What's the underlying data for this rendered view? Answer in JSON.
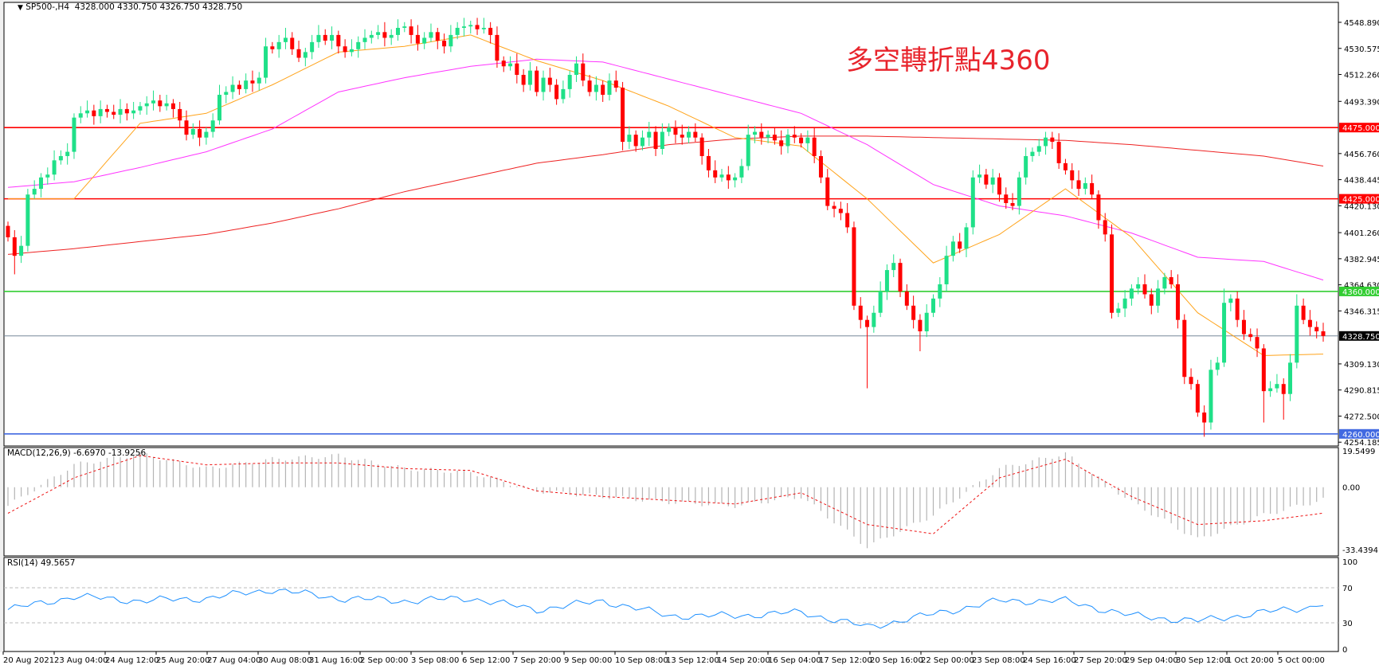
{
  "header": {
    "symbol": "SP500-,H4",
    "ohlc": "4328.000 4330.750 4326.750 4328.750"
  },
  "annotation": "多空轉折點4360",
  "colors": {
    "bull": "#1fe088",
    "bear": "#ff0000",
    "ma_fast": "#ffa31a",
    "ma_mid": "#ff33ff",
    "ma_slow": "#ee2222",
    "macd_hist": "#b4b4b4",
    "macd_signal": "#ee1111",
    "rsi": "#1e90ff"
  },
  "chart_data": [
    {
      "type": "candlestick",
      "title": "SP500-,H4",
      "price_axis_labels": [
        "4548.890",
        "4530.575",
        "4512.260",
        "4493.390",
        "4456.760",
        "4438.445",
        "4420.130",
        "4401.260",
        "4382.945",
        "4364.630",
        "4346.315",
        "4309.130",
        "4290.815",
        "4272.500",
        "4254.185"
      ],
      "ylim": [
        4254.185,
        4548.89
      ],
      "time_axis_labels": [
        "20 Aug 2021",
        "23 Aug 04:00",
        "24 Aug 12:00",
        "25 Aug 20:00",
        "27 Aug 04:00",
        "30 Aug 08:00",
        "31 Aug 16:00",
        "2 Sep 00:00",
        "3 Sep 08:00",
        "6 Sep 12:00",
        "7 Sep 20:00",
        "9 Sep 00:00",
        "10 Sep 08:00",
        "13 Sep 12:00",
        "14 Sep 20:00",
        "16 Sep 04:00",
        "17 Sep 12:00",
        "20 Sep 16:00",
        "22 Sep 00:00",
        "23 Sep 08:00",
        "24 Sep 16:00",
        "27 Sep 20:00",
        "29 Sep 04:00",
        "30 Sep 12:00",
        "1 Oct 20:00",
        "5 Oct 00:00"
      ],
      "close": [
        4398,
        4385,
        4392,
        4428,
        4432,
        4440,
        4442,
        4452,
        4455,
        4458,
        4482,
        4485,
        4487,
        4483,
        4488,
        4486,
        4484,
        4488,
        4485,
        4487,
        4490,
        4492,
        4494,
        4490,
        4492,
        4488,
        4480,
        4470,
        4474,
        4468,
        4472,
        4480,
        4498,
        4500,
        4505,
        4502,
        4508,
        4506,
        4510,
        4532,
        4530,
        4535,
        4538,
        4530,
        4524,
        4528,
        4535,
        4540,
        4536,
        4540,
        4532,
        4528,
        4530,
        4535,
        4538,
        4540,
        4542,
        4538,
        4540,
        4545,
        4546,
        4540,
        4534,
        4538,
        4542,
        4536,
        4532,
        4540,
        4545,
        4546,
        4547,
        4544,
        4545,
        4540,
        4522,
        4518,
        4520,
        4512,
        4505,
        4515,
        4500,
        4510,
        4505,
        4495,
        4502,
        4512,
        4520,
        4508,
        4500,
        4505,
        4498,
        4508,
        4503,
        4465,
        4470,
        4462,
        4468,
        4472,
        4460,
        4472,
        4475,
        4470,
        4468,
        4472,
        4468,
        4455,
        4445,
        4440,
        4442,
        4438,
        4440,
        4448,
        4470,
        4472,
        4468,
        4470,
        4466,
        4462,
        4470,
        4468,
        4464,
        4468,
        4455,
        4440,
        4420,
        4418,
        4415,
        4405,
        4350,
        4340,
        4335,
        4345,
        4360,
        4375,
        4380,
        4360,
        4350,
        4340,
        4332,
        4345,
        4355,
        4365,
        4385,
        4395,
        4390,
        4405,
        4440,
        4442,
        4435,
        4440,
        4428,
        4422,
        4420,
        4440,
        4455,
        4458,
        4462,
        4468,
        4465,
        4450,
        4445,
        4438,
        4432,
        4436,
        4428,
        4410,
        4400,
        4345,
        4348,
        4355,
        4362,
        4365,
        4358,
        4350,
        4362,
        4370,
        4365,
        4340,
        4300,
        4295,
        4275,
        4268,
        4305,
        4310,
        4352,
        4355,
        4340,
        4330,
        4328,
        4320,
        4290,
        4292,
        4295,
        4288,
        4310,
        4350,
        4340,
        4335,
        4332,
        4328.75
      ],
      "notable_wicks": [
        {
          "bar": 1,
          "low": 4372
        },
        {
          "bar": 130,
          "low": 4292
        },
        {
          "bar": 138,
          "low": 4318
        },
        {
          "bar": 157,
          "high": 4472
        },
        {
          "bar": 181,
          "low": 4258
        },
        {
          "bar": 184,
          "high": 4362
        },
        {
          "bar": 190,
          "low": 4268
        },
        {
          "bar": 193,
          "low": 4270
        },
        {
          "bar": 195,
          "high": 4358
        }
      ],
      "moving_averages_every_10_bars": {
        "fast": [
          4425,
          4425,
          4478,
          4485,
          4505,
          4528,
          4532,
          4540,
          4522,
          4508,
          4490,
          4468,
          4462,
          4425,
          4380,
          4400,
          4432,
          4398,
          4345,
          4315,
          4316
        ],
        "mid": [
          4433,
          4437,
          4447,
          4458,
          4474,
          4500,
          4510,
          4518,
          4523,
          4521,
          4509,
          4497,
          4485,
          4463,
          4435,
          4420,
          4413,
          4401,
          4384,
          4381,
          4368
        ],
        "slow": [
          4386,
          4390,
          4395,
          4400,
          4408,
          4418,
          4430,
          4440,
          4450,
          4456,
          4463,
          4467,
          4469,
          4469,
          4468,
          4467,
          4466,
          4463,
          4459,
          4455,
          4448
        ]
      },
      "horizontal_lines": [
        {
          "price": "4475.000",
          "color": "#ff0000",
          "label_text": "#ffffff"
        },
        {
          "price": "4425.000",
          "color": "#ff0000",
          "label_text": "#ffffff"
        },
        {
          "price": "4360.000",
          "color": "#32cd32",
          "label_text": "#ffffff"
        },
        {
          "price": "4328.750",
          "color": "#778899",
          "label_bg": "#000000",
          "label_text": "#ffffff"
        },
        {
          "price": "4260.000",
          "color": "#4169e1",
          "label_text": "#ffffff"
        }
      ]
    },
    {
      "type": "bar",
      "title": "MACD(12,26,9) -6.6970 -13.9256",
      "axis_labels": [
        "19.5499",
        "0.00",
        "-33.4394"
      ],
      "ylim": [
        -33.4394,
        19.5499
      ],
      "main_every_10_bars": [
        -10,
        12,
        18,
        10,
        15,
        17,
        10,
        8,
        -2,
        -5,
        -8,
        -10,
        -5,
        -32,
        -15,
        10,
        18,
        -8,
        -28,
        -15,
        -6.697
      ],
      "signal_every_10_bars": [
        -14,
        5,
        17,
        12,
        13,
        13,
        10,
        9,
        -2,
        -5,
        -7,
        -9,
        -3,
        -20,
        -25,
        5,
        15,
        -5,
        -20,
        -18,
        -13.9256
      ]
    },
    {
      "type": "line",
      "title": "RSI(14) 49.5657",
      "axis_labels": [
        "100",
        "70",
        "30",
        "0"
      ],
      "ylim": [
        0,
        100
      ],
      "levels": [
        70,
        30
      ],
      "values_every_10_bars": [
        45,
        60,
        55,
        58,
        68,
        58,
        55,
        58,
        45,
        55,
        38,
        38,
        42,
        25,
        40,
        55,
        55,
        38,
        32,
        42,
        49.5657
      ]
    }
  ]
}
